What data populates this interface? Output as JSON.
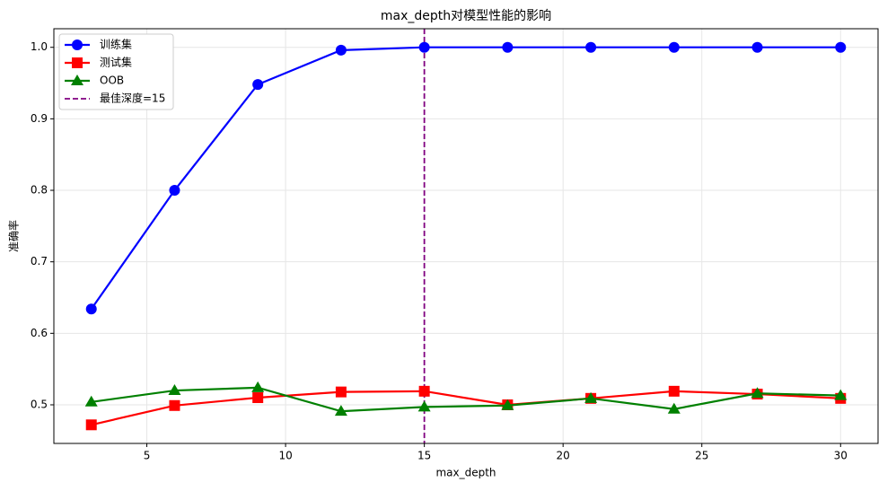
{
  "chart_data": {
    "type": "line",
    "title": "max_depth对模型性能的影响",
    "x_label": "max_depth",
    "y_label": "准确率",
    "x": [
      3,
      6,
      9,
      12,
      15,
      18,
      21,
      24,
      27,
      30
    ],
    "series": [
      {
        "name": "训练集",
        "color": "#0000ff",
        "marker": "circle",
        "values": [
          0.634,
          0.8,
          0.948,
          0.996,
          1.0,
          1.0,
          1.0,
          1.0,
          1.0,
          1.0
        ]
      },
      {
        "name": "测试集",
        "color": "#ff0000",
        "marker": "square",
        "values": [
          0.472,
          0.499,
          0.51,
          0.518,
          0.519,
          0.5,
          0.509,
          0.519,
          0.515,
          0.509
        ]
      },
      {
        "name": "OOB",
        "color": "#008000",
        "marker": "triangle",
        "values": [
          0.504,
          0.52,
          0.524,
          0.491,
          0.497,
          0.499,
          0.509,
          0.494,
          0.516,
          0.513
        ]
      }
    ],
    "reference_line": {
      "x": 15,
      "label": "最佳深度=15",
      "color": "#800080"
    },
    "xlim": [
      1.65,
      31.35
    ],
    "xticks": [
      5,
      10,
      15,
      20,
      25,
      30
    ],
    "ylim": [
      0.446,
      1.026
    ],
    "yticks": [
      0.5,
      0.6,
      0.7,
      0.8,
      0.9,
      {
        "value": 1,
        "label": "1.0"
      }
    ],
    "grid": true,
    "legend": "upper left"
  }
}
